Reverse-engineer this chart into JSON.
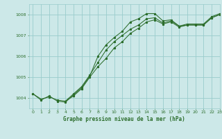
{
  "title": "Graphe pression niveau de la mer (hPa)",
  "background_color": "#cce8e8",
  "grid_color": "#99cccc",
  "line_color": "#2d6e2d",
  "xlim": [
    -0.5,
    23
  ],
  "ylim": [
    1003.5,
    1008.5
  ],
  "yticks": [
    1004,
    1005,
    1006,
    1007,
    1008
  ],
  "xticks": [
    0,
    1,
    2,
    3,
    4,
    5,
    6,
    7,
    8,
    9,
    10,
    11,
    12,
    13,
    14,
    15,
    16,
    17,
    18,
    19,
    20,
    21,
    22,
    23
  ],
  "series1": {
    "x": [
      0,
      1,
      2,
      3,
      4,
      5,
      6,
      7,
      8,
      9,
      10,
      11,
      12,
      13,
      14,
      15,
      16,
      17,
      18,
      19,
      20,
      21,
      22,
      23
    ],
    "y": [
      1004.2,
      1003.9,
      1004.1,
      1003.85,
      1003.8,
      1004.15,
      1004.5,
      1005.05,
      1006.0,
      1006.55,
      1006.9,
      1007.2,
      1007.65,
      1007.8,
      1008.05,
      1008.05,
      1007.7,
      1007.75,
      1007.45,
      1007.55,
      1007.55,
      1007.55,
      1007.9,
      1008.05
    ]
  },
  "series2": {
    "x": [
      0,
      1,
      2,
      3,
      4,
      5,
      6,
      7,
      8,
      9,
      10,
      11,
      12,
      13,
      14,
      15,
      16,
      17,
      18,
      19,
      20,
      21,
      22,
      23
    ],
    "y": [
      1004.2,
      1003.95,
      1004.05,
      1003.9,
      1003.85,
      1004.2,
      1004.55,
      1005.1,
      1005.7,
      1006.3,
      1006.7,
      1007.0,
      1007.3,
      1007.5,
      1007.8,
      1007.85,
      1007.6,
      1007.7,
      1007.45,
      1007.5,
      1007.5,
      1007.5,
      1007.85,
      1008.0
    ]
  },
  "series3": {
    "x": [
      4,
      5,
      6,
      7,
      8,
      9,
      10,
      11,
      12,
      13,
      14,
      15,
      16,
      17,
      18,
      19,
      20,
      21,
      22,
      23
    ],
    "y": [
      1003.85,
      1004.1,
      1004.45,
      1005.0,
      1005.5,
      1005.9,
      1006.4,
      1006.7,
      1007.1,
      1007.35,
      1007.65,
      1007.75,
      1007.55,
      1007.65,
      1007.4,
      1007.5,
      1007.5,
      1007.5,
      1007.85,
      1008.0
    ]
  }
}
